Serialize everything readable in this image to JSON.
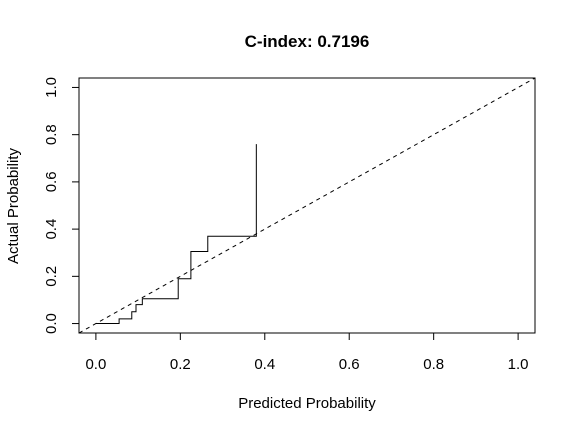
{
  "chart_data": {
    "type": "line",
    "title": "C-index: 0.7196",
    "xlabel": "Predicted Probability",
    "ylabel": "Actual Probability",
    "xlim": [
      -0.04,
      1.04
    ],
    "ylim": [
      -0.04,
      1.04
    ],
    "xticks": [
      "0.0",
      "0.2",
      "0.4",
      "0.6",
      "0.8",
      "1.0"
    ],
    "yticks": [
      "0.0",
      "0.2",
      "0.4",
      "0.6",
      "0.8",
      "1.0"
    ],
    "grid": false,
    "legend": "none",
    "series": [
      {
        "style": "step",
        "color": "#000000",
        "x": [
          0.0,
          0.055,
          0.055,
          0.085,
          0.085,
          0.095,
          0.095,
          0.11,
          0.11,
          0.195,
          0.195,
          0.225,
          0.225,
          0.265,
          0.265,
          0.38,
          0.38
        ],
        "y": [
          0.0,
          0.0,
          0.02,
          0.02,
          0.05,
          0.05,
          0.08,
          0.08,
          0.105,
          0.105,
          0.19,
          0.19,
          0.305,
          0.305,
          0.37,
          0.37,
          0.76
        ]
      },
      {
        "style": "dashed",
        "color": "#000000",
        "x": [
          -0.04,
          1.04
        ],
        "y": [
          -0.04,
          1.04
        ]
      }
    ]
  }
}
